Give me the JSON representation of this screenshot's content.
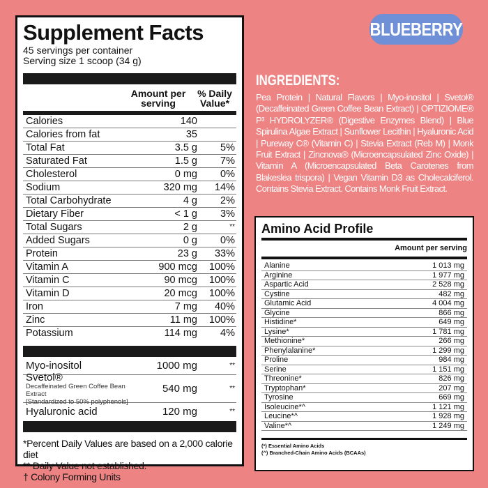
{
  "facts": {
    "title": "Supplement Facts",
    "servings": "45 servings per container",
    "serving_size": "Serving size  1 scoop (34 g)",
    "header_amount": "Amount per serving",
    "header_dv": "% Daily Value*",
    "rows": [
      [
        "Calories",
        "140",
        ""
      ],
      [
        "Calories from fat",
        "35",
        ""
      ],
      [
        "Total Fat",
        "3.5 g",
        "5%"
      ],
      [
        "Saturated Fat",
        "1.5 g",
        "7%"
      ],
      [
        "Cholesterol",
        "0 mg",
        "0%"
      ],
      [
        "Sodium",
        "320 mg",
        "14%"
      ],
      [
        "Total Carbohydrate",
        "4 g",
        "2%"
      ],
      [
        "Dietary Fiber",
        "< 1 g",
        "3%"
      ],
      [
        "Total Sugars",
        "2 g",
        "**"
      ],
      [
        "Added Sugars",
        "0 g",
        "0%"
      ],
      [
        "Protein",
        "23 g",
        "33%"
      ],
      [
        "Vitamin A",
        "900 mcg",
        "100%"
      ],
      [
        "Vitamin C",
        "90 mcg",
        "100%"
      ],
      [
        "Vitamin D",
        "20 mcg",
        "100%"
      ],
      [
        "Iron",
        "7 mg",
        "40%"
      ],
      [
        "Zinc",
        "11 mg",
        "100%"
      ],
      [
        "Potassium",
        "114 mg",
        "4%"
      ]
    ],
    "blend": {
      "myo_name": "Myo-inositol",
      "myo_amount": "1000 mg",
      "myo_dv": "**",
      "svetol_name": "Svetol®",
      "svetol_desc": "Decaffeinated Green Coffee Bean Extract",
      "svetol_std": "[Standardized to 50% polyphenols]",
      "svetol_amount": "540 mg",
      "svetol_dv": "**",
      "ha_name": "Hyaluronic acid",
      "ha_amount": "120 mg",
      "ha_dv": "**"
    },
    "footnotes": [
      "*Percent Daily Values are based on a 2,000 calorie diet",
      "** Daily Value not established.",
      "† Colony Forming Units"
    ]
  },
  "flavor": "BLUEBERRY",
  "ingredients": {
    "title": "INGREDIENTS:",
    "text": "Pea Protein | Natural Flavors | Myo-inositol | Svetol® (Decaffeinated Green Coffee Bean Extract) | OPTIZIOME® P³ HYDROLYZER® (Digestive Enzymes Blend) | Blue Spirulina Algae Extract | Sunflower Lecithin | Hyaluronic Acid | Pureway C® (Vitamin C) | Stevia Extract (Reb M) | Monk Fruit Extract | Zincnova® (Microencapsulated Zinc Oxide) | Vitamin A (Microencapsulated Beta Carotenes from Blakeslea trispora) | Vegan Vitamin D3 as Cholecalciferol. Contains Stevia Extract. Contains Monk Fruit Extract."
  },
  "amino": {
    "title": "Amino Acid Profile",
    "header": "Amount per serving",
    "rows": [
      [
        "Alanine",
        "1 013 mg"
      ],
      [
        "Arginine",
        "1 977 mg"
      ],
      [
        "Aspartic Acid",
        "2 528 mg"
      ],
      [
        "Cystine",
        "482 mg"
      ],
      [
        "Glutamic Acid",
        "4 004 mg"
      ],
      [
        "Glycine",
        "866 mg"
      ],
      [
        "Histidine*",
        "649 mg"
      ],
      [
        "Lysine*",
        "1 781 mg"
      ],
      [
        "Methionine*",
        "266 mg"
      ],
      [
        "Phenylalanine*",
        "1 299 mg"
      ],
      [
        "Proline",
        "984 mg"
      ],
      [
        "Serine",
        "1 151 mg"
      ],
      [
        "Threonine*",
        "826 mg"
      ],
      [
        "Tryptophan*",
        "207 mg"
      ],
      [
        "Tyrosine",
        "669 mg"
      ],
      [
        "Isoleucine*^",
        "1 121 mg"
      ],
      [
        "Leucine*^",
        "1 928 mg"
      ],
      [
        "Valine*^",
        "1 249 mg"
      ]
    ],
    "notes": [
      "(*) Essential Amino Acids",
      "(^) Branched-Chain Amino Acids (BCAAs)"
    ]
  }
}
